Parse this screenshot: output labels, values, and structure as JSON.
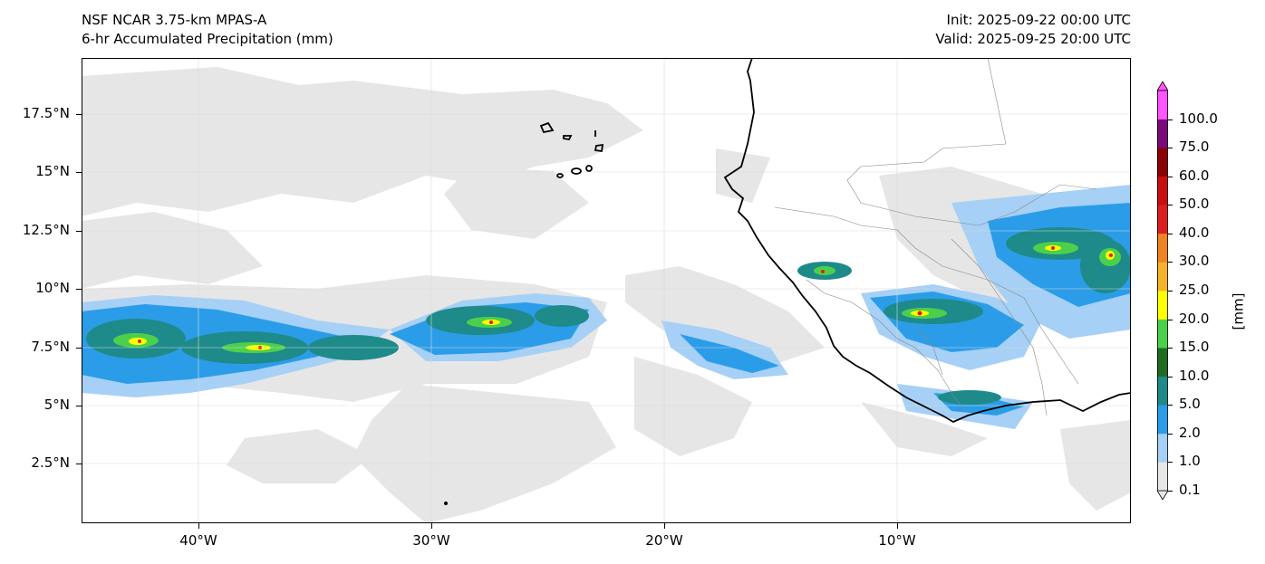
{
  "header": {
    "title_left_1": "NSF NCAR 3.75-km MPAS-A",
    "title_left_2": "6-hr Accumulated Precipitation (mm)",
    "title_right_1": "Init: 2025-09-22 00:00 UTC",
    "title_right_2": "Valid: 2025-09-25 20:00 UTC"
  },
  "map": {
    "lon_range": [
      -45,
      0
    ],
    "lat_range": [
      0,
      20
    ],
    "y_ticks": [
      "17.5°N",
      "15°N",
      "12.5°N",
      "10°N",
      "7.5°N",
      "5°N",
      "2.5°N"
    ],
    "x_ticks": [
      "40°W",
      "30°W",
      "20°W",
      "10°W"
    ]
  },
  "colorbar": {
    "unit_label": "[mm]",
    "levels": [
      "0.1",
      "1.0",
      "2.0",
      "5.0",
      "10.0",
      "15.0",
      "20.0",
      "25.0",
      "30.0",
      "40.0",
      "50.0",
      "60.0",
      "75.0",
      "100.0"
    ],
    "colors": [
      "#e6e6e6",
      "#a6d0f5",
      "#2b9de8",
      "#1e8a8a",
      "#1f6b1f",
      "#4cd04c",
      "#ffff00",
      "#f5b32a",
      "#ee8420",
      "#dd1d1d",
      "#c80e0e",
      "#8b0000",
      "#7a0a7a",
      "#ff55ff"
    ]
  }
}
